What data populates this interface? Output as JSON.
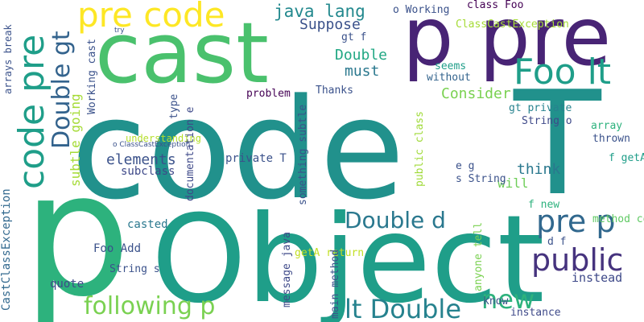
{
  "words": [
    {
      "text": "code",
      "color": "#21918c"
    },
    {
      "text": "T",
      "color": "#21918c"
    },
    {
      "text": "Object",
      "color": "#1f9e89"
    },
    {
      "text": "p",
      "color": "#2db27d"
    },
    {
      "text": "cast",
      "color": "#4ac16d"
    },
    {
      "text": "p pre",
      "color": "#482475"
    },
    {
      "text": "pre code",
      "color": "#fde725"
    },
    {
      "text": "code pre",
      "color": "#1f9e89"
    },
    {
      "text": "Double gt",
      "color": "#33638d"
    },
    {
      "text": "Foo lt",
      "color": "#1f9e89"
    },
    {
      "text": "pre p",
      "color": "#31688e"
    },
    {
      "text": "public",
      "color": "#46337e"
    },
    {
      "text": "new",
      "color": "#2db27d"
    },
    {
      "text": "lt Double",
      "color": "#26828e"
    },
    {
      "text": "following p",
      "color": "#7ad151"
    },
    {
      "text": "Double d",
      "color": "#2a788e"
    },
    {
      "text": "java lang",
      "color": "#23898e"
    },
    {
      "text": "Suppose",
      "color": "#3b528b"
    },
    {
      "text": "Double",
      "color": "#22a884"
    },
    {
      "text": "must",
      "color": "#2a788e"
    },
    {
      "text": "Consider",
      "color": "#7ad151"
    },
    {
      "text": "think",
      "color": "#2a788e"
    },
    {
      "text": "will",
      "color": "#6ece58"
    },
    {
      "text": "elements",
      "color": "#3b528b"
    },
    {
      "text": "CastClassException",
      "color": "#31688e"
    },
    {
      "text": "understanding",
      "color": "#a5db36"
    },
    {
      "text": "subclass",
      "color": "#b5de2b"
    },
    {
      "text": "private T",
      "color": "#3e4989"
    },
    {
      "text": "casted",
      "color": "#3b528b"
    },
    {
      "text": "Foo Add",
      "color": "#2a788e"
    },
    {
      "text": "String s",
      "color": "#3b528b"
    },
    {
      "text": "quote",
      "color": "#3b528b"
    },
    {
      "text": "problem",
      "color": "#3e4989"
    },
    {
      "text": "Thanks",
      "color": "#440154"
    },
    {
      "text": "o Working",
      "color": "#3b528b"
    },
    {
      "text": "class Foo",
      "color": "#3b528b"
    },
    {
      "text": "ClassCastException",
      "color": "#440154"
    },
    {
      "text": "gt f",
      "color": "#a5db36"
    },
    {
      "text": "seems",
      "color": "#3b528b"
    },
    {
      "text": "without",
      "color": "#1f9e89"
    },
    {
      "text": "gt private",
      "color": "#33638d"
    },
    {
      "text": "String o",
      "color": "#26828e"
    },
    {
      "text": "array",
      "color": "#3e4989"
    },
    {
      "text": "thrown",
      "color": "#2db27d"
    },
    {
      "text": "f getA",
      "color": "#3b528b"
    },
    {
      "text": "e g",
      "color": "#1f9e89"
    },
    {
      "text": "s String",
      "color": "#3b528b"
    },
    {
      "text": "f new",
      "color": "#3b528b"
    },
    {
      "text": "method contains",
      "color": "#2db27d"
    },
    {
      "text": "d f",
      "color": "#5ec962"
    },
    {
      "text": "instead",
      "color": "#3b528b"
    },
    {
      "text": "know",
      "color": "#3e4989"
    },
    {
      "text": "instance",
      "color": "#3b528b"
    },
    {
      "text": "getA return",
      "color": "#3e4989"
    },
    {
      "text": "try",
      "color": "#c2df23"
    },
    {
      "text": "o ClassCastException",
      "color": "#3b528b"
    },
    {
      "text": "arrays break",
      "color": "#3b528b"
    },
    {
      "text": "subtle going",
      "color": "#3b528b"
    },
    {
      "text": "Working cast",
      "color": "#3b528b"
    },
    {
      "text": "type",
      "color": "#3b528b"
    },
    {
      "text": "documentation e",
      "color": "#3e4989"
    },
    {
      "text": "something subtle",
      "color": "#3b528b"
    },
    {
      "text": "public class",
      "color": "#a0da39"
    },
    {
      "text": "message java",
      "color": "#3e4989"
    },
    {
      "text": "main method",
      "color": "#3b528b"
    },
    {
      "text": "anyone tell",
      "color": "#7ad151"
    }
  ]
}
